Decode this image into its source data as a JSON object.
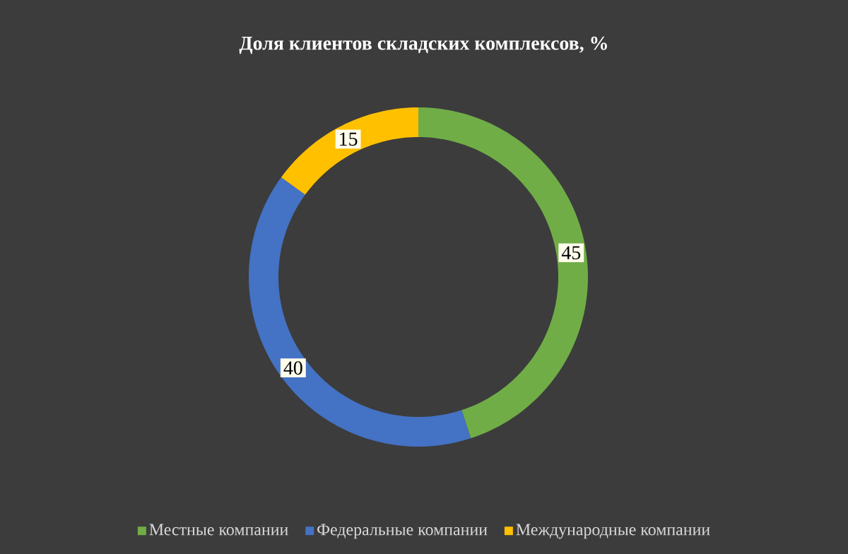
{
  "chart_data": {
    "type": "donut",
    "title": "Доля клиентов складских комплексов, %",
    "categories": [
      "Местные компании",
      "Федеральные компании",
      "Международные компании"
    ],
    "values": [
      45,
      40,
      15
    ],
    "colors": [
      "#70ad47",
      "#4472c4",
      "#ffc000"
    ],
    "data_labels": true,
    "legend": "bottom"
  }
}
